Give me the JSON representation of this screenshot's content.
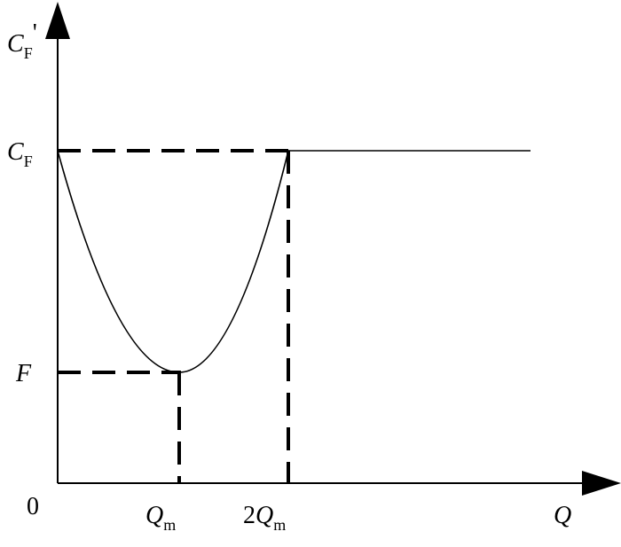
{
  "y_axis_label": {
    "symbol": "C",
    "subscript": "F",
    "prime": "'"
  },
  "levels": {
    "upper": {
      "symbol": "C",
      "subscript": "F"
    },
    "lower": {
      "symbol": "F"
    }
  },
  "origin": "0",
  "x_marks": {
    "first": {
      "symbol": "Q",
      "subscript": "m"
    },
    "second": {
      "coefficient": "2",
      "symbol": "Q",
      "subscript": "m"
    }
  },
  "x_axis_label": "Q"
}
